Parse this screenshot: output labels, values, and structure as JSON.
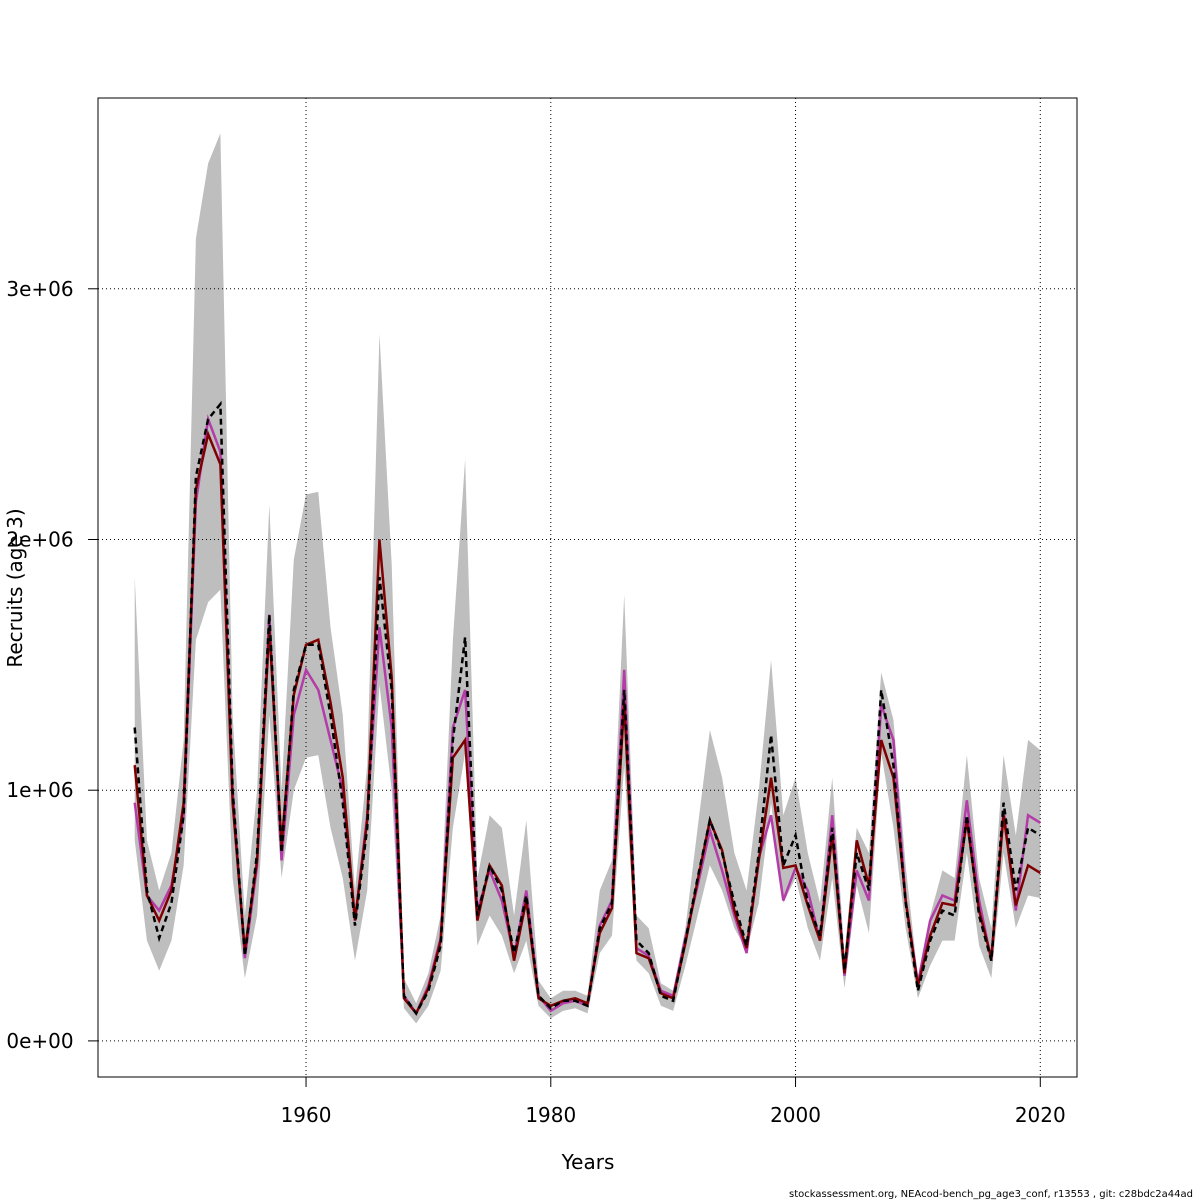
{
  "chart_data": {
    "type": "line",
    "xlabel": "Years",
    "ylabel": "Recruits (age 3)",
    "footer": "stockassessment.org, NEAcod-bench_pg_age3_conf, r13553 , git: c28bdc2a44ad",
    "x": [
      1946,
      1947,
      1948,
      1949,
      1950,
      1951,
      1952,
      1953,
      1954,
      1955,
      1956,
      1957,
      1958,
      1959,
      1960,
      1961,
      1962,
      1963,
      1964,
      1965,
      1966,
      1967,
      1968,
      1969,
      1970,
      1971,
      1972,
      1973,
      1974,
      1975,
      1976,
      1977,
      1978,
      1979,
      1980,
      1981,
      1982,
      1983,
      1984,
      1985,
      1986,
      1987,
      1988,
      1989,
      1990,
      1991,
      1992,
      1993,
      1994,
      1995,
      1996,
      1997,
      1998,
      1999,
      2000,
      2001,
      2002,
      2003,
      2004,
      2005,
      2006,
      2007,
      2008,
      2009,
      2010,
      2011,
      2012,
      2013,
      2014,
      2015,
      2016,
      2017,
      2018,
      2019,
      2020
    ],
    "band": {
      "color": "#bebebe",
      "upper": [
        1850000,
        800000,
        600000,
        750000,
        1200000,
        3200000,
        3500000,
        3620000,
        1300000,
        500000,
        1000000,
        2140000,
        1000000,
        1920000,
        2180000,
        2190000,
        1650000,
        1300000,
        600000,
        1100000,
        2820000,
        1900000,
        250000,
        150000,
        270000,
        500000,
        1600000,
        2320000,
        650000,
        900000,
        850000,
        500000,
        880000,
        240000,
        170000,
        200000,
        200000,
        180000,
        600000,
        720000,
        1780000,
        500000,
        450000,
        230000,
        200000,
        450000,
        850000,
        1240000,
        1050000,
        750000,
        600000,
        1000000,
        1520000,
        900000,
        1050000,
        750000,
        550000,
        1050000,
        350000,
        850000,
        750000,
        1470000,
        1280000,
        700000,
        250000,
        500000,
        680000,
        650000,
        1140000,
        650000,
        450000,
        1140000,
        820000,
        1200000,
        1160000
      ],
      "lower": [
        800000,
        400000,
        280000,
        400000,
        700000,
        1600000,
        1750000,
        1800000,
        650000,
        250000,
        500000,
        1300000,
        650000,
        1000000,
        1130000,
        1140000,
        850000,
        650000,
        320000,
        600000,
        1420000,
        1000000,
        130000,
        70000,
        140000,
        280000,
        850000,
        1150000,
        380000,
        500000,
        420000,
        270000,
        400000,
        140000,
        90000,
        120000,
        130000,
        110000,
        350000,
        420000,
        1100000,
        320000,
        270000,
        140000,
        120000,
        300000,
        500000,
        700000,
        600000,
        450000,
        360000,
        550000,
        950000,
        550000,
        650000,
        450000,
        320000,
        650000,
        210000,
        620000,
        430000,
        1150000,
        850000,
        450000,
        170000,
        300000,
        400000,
        400000,
        750000,
        380000,
        250000,
        750000,
        450000,
        580000,
        570000
      ]
    },
    "series": [
      {
        "color": "#b43ca8",
        "linestyle": "solid",
        "values": [
          950000,
          580000,
          520000,
          620000,
          900000,
          2150000,
          2480000,
          2350000,
          1000000,
          330000,
          700000,
          1700000,
          720000,
          1300000,
          1480000,
          1400000,
          1200000,
          1000000,
          480000,
          900000,
          1650000,
          1250000,
          180000,
          110000,
          220000,
          410000,
          1250000,
          1400000,
          520000,
          680000,
          560000,
          340000,
          600000,
          180000,
          120000,
          150000,
          160000,
          140000,
          460000,
          560000,
          1480000,
          370000,
          340000,
          200000,
          180000,
          410000,
          620000,
          840000,
          680000,
          500000,
          350000,
          730000,
          900000,
          560000,
          690000,
          600000,
          400000,
          900000,
          260000,
          680000,
          560000,
          1340000,
          1200000,
          560000,
          230000,
          480000,
          580000,
          560000,
          960000,
          560000,
          320000,
          920000,
          520000,
          900000,
          870000
        ]
      },
      {
        "color": "#7f0000",
        "linestyle": "solid",
        "values": [
          1100000,
          580000,
          480000,
          600000,
          950000,
          2200000,
          2420000,
          2300000,
          950000,
          360000,
          720000,
          1650000,
          780000,
          1380000,
          1580000,
          1600000,
          1350000,
          1050000,
          480000,
          880000,
          2000000,
          1450000,
          170000,
          110000,
          210000,
          400000,
          1130000,
          1200000,
          480000,
          700000,
          620000,
          320000,
          560000,
          170000,
          140000,
          160000,
          170000,
          150000,
          430000,
          530000,
          1350000,
          350000,
          330000,
          190000,
          170000,
          390000,
          640000,
          880000,
          760000,
          520000,
          370000,
          720000,
          1050000,
          690000,
          700000,
          540000,
          400000,
          820000,
          270000,
          800000,
          620000,
          1200000,
          1050000,
          560000,
          220000,
          420000,
          550000,
          540000,
          880000,
          520000,
          330000,
          900000,
          540000,
          700000,
          670000
        ]
      },
      {
        "color": "#000000",
        "linestyle": "dashed",
        "values": [
          1250000,
          600000,
          410000,
          550000,
          900000,
          2250000,
          2480000,
          2540000,
          1000000,
          340000,
          750000,
          1700000,
          750000,
          1400000,
          1580000,
          1580000,
          1300000,
          950000,
          460000,
          850000,
          1850000,
          1400000,
          180000,
          110000,
          200000,
          380000,
          1200000,
          1610000,
          500000,
          700000,
          600000,
          350000,
          580000,
          180000,
          130000,
          160000,
          160000,
          140000,
          450000,
          550000,
          1400000,
          400000,
          350000,
          180000,
          160000,
          400000,
          650000,
          880000,
          750000,
          550000,
          380000,
          750000,
          1220000,
          700000,
          820000,
          550000,
          420000,
          850000,
          280000,
          750000,
          600000,
          1400000,
          1100000,
          550000,
          200000,
          400000,
          520000,
          500000,
          900000,
          500000,
          320000,
          950000,
          600000,
          850000,
          820000
        ]
      }
    ],
    "xlim": [
      1943,
      2023
    ],
    "xticks": [
      1960,
      1980,
      2000,
      2020
    ],
    "ylim": [
      -144000,
      3761000
    ],
    "yticks": [
      {
        "value": 0,
        "label": "0e+00"
      },
      {
        "value": 1000000,
        "label": "1e+06"
      },
      {
        "value": 2000000,
        "label": "2e+06"
      },
      {
        "value": 3000000,
        "label": "3e+06"
      }
    ],
    "grid": true
  }
}
